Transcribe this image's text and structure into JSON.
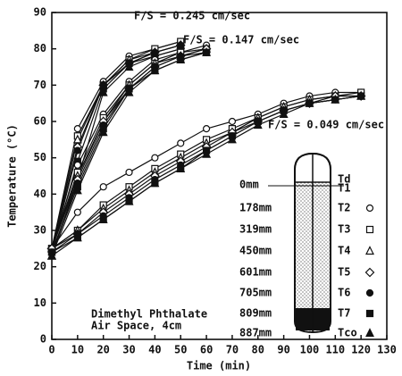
{
  "chart_data": {
    "type": "line",
    "xlabel": "Time (min)",
    "ylabel": "Temperature (°C)",
    "xlim": [
      0,
      130
    ],
    "ylim": [
      0,
      90
    ],
    "xticks": [
      0,
      10,
      20,
      30,
      40,
      50,
      60,
      70,
      80,
      90,
      100,
      110,
      120,
      130
    ],
    "yticks": [
      0,
      10,
      20,
      30,
      40,
      50,
      60,
      70,
      80,
      90
    ],
    "color": "#111111",
    "annotations": [
      "Dimethyl Phthalate",
      "Air Space, 4cm"
    ],
    "legend": [
      {
        "depth": "0mm",
        "names": [
          "Td",
          "T1"
        ]
      },
      {
        "depth": "178mm",
        "name": "T2",
        "marker": "circle-open"
      },
      {
        "depth": "319mm",
        "name": "T3",
        "marker": "square-open"
      },
      {
        "depth": "450mm",
        "name": "T4",
        "marker": "triangle-open"
      },
      {
        "depth": "601mm",
        "name": "T5",
        "marker": "diamond-open"
      },
      {
        "depth": "705mm",
        "name": "T6",
        "marker": "circle-filled"
      },
      {
        "depth": "809mm",
        "name": "T7",
        "marker": "square-filled"
      },
      {
        "depth": "887mm",
        "name": "Tco",
        "marker": "triangle-filled"
      }
    ],
    "groups": [
      {
        "label": "F/S = 0.245 cm/sec",
        "x": [
          0,
          10,
          20,
          30,
          40,
          50
        ],
        "series": [
          {
            "values": [
              25,
              58,
              71,
              78,
              80,
              82
            ]
          },
          {
            "values": [
              25,
              56,
              70,
              77,
              80,
              82
            ]
          },
          {
            "values": [
              25,
              55,
              70,
              77,
              79,
              81
            ]
          },
          {
            "values": [
              25,
              53,
              70,
              76,
              79,
              81
            ]
          },
          {
            "values": [
              24,
              52,
              70,
              76,
              79,
              81
            ]
          },
          {
            "values": [
              24,
              49,
              69,
              76,
              78,
              80
            ]
          },
          {
            "values": [
              23,
              44,
              68,
              75,
              78,
              80
            ]
          }
        ]
      },
      {
        "label": "F/S = 0.147 cm/sec",
        "x": [
          0,
          10,
          20,
          30,
          40,
          50,
          60
        ],
        "series": [
          {
            "values": [
              25,
              48,
              62,
              71,
              77,
              79,
              81
            ]
          },
          {
            "values": [
              25,
              46,
              61,
              70,
              76,
              79,
              80
            ]
          },
          {
            "values": [
              25,
              45,
              60,
              70,
              76,
              78,
              80
            ]
          },
          {
            "values": [
              25,
              44,
              60,
              69,
              75,
              78,
              80
            ]
          },
          {
            "values": [
              24,
              43,
              59,
              69,
              75,
              78,
              79
            ]
          },
          {
            "values": [
              24,
              42,
              58,
              69,
              74,
              77,
              79
            ]
          },
          {
            "values": [
              23,
              41,
              57,
              68,
              74,
              77,
              79
            ]
          }
        ]
      },
      {
        "label": "F/S = 0.049 cm/sec",
        "x": [
          0,
          10,
          20,
          30,
          40,
          50,
          60,
          70,
          80,
          90,
          100,
          110,
          120
        ],
        "series": [
          {
            "values": [
              25,
              35,
              42,
              46,
              50,
              54,
              58,
              60,
              62,
              65,
              67,
              68,
              68
            ]
          },
          {
            "values": [
              25,
              30,
              37,
              42,
              47,
              51,
              55,
              58,
              61,
              64,
              66,
              67,
              68
            ]
          },
          {
            "values": [
              25,
              30,
              36,
              41,
              46,
              50,
              54,
              57,
              61,
              64,
              66,
              67,
              67
            ]
          },
          {
            "values": [
              25,
              29,
              35,
              40,
              45,
              49,
              53,
              57,
              60,
              63,
              65,
              67,
              67
            ]
          },
          {
            "values": [
              24,
              29,
              34,
              39,
              44,
              48,
              52,
              56,
              60,
              63,
              65,
              66,
              67
            ]
          },
          {
            "values": [
              24,
              28,
              33,
              38,
              43,
              47,
              52,
              56,
              60,
              63,
              65,
              66,
              67
            ]
          },
          {
            "values": [
              23,
              28,
              33,
              38,
              43,
              47,
              51,
              55,
              59,
              62,
              65,
              66,
              67
            ]
          }
        ]
      }
    ]
  }
}
